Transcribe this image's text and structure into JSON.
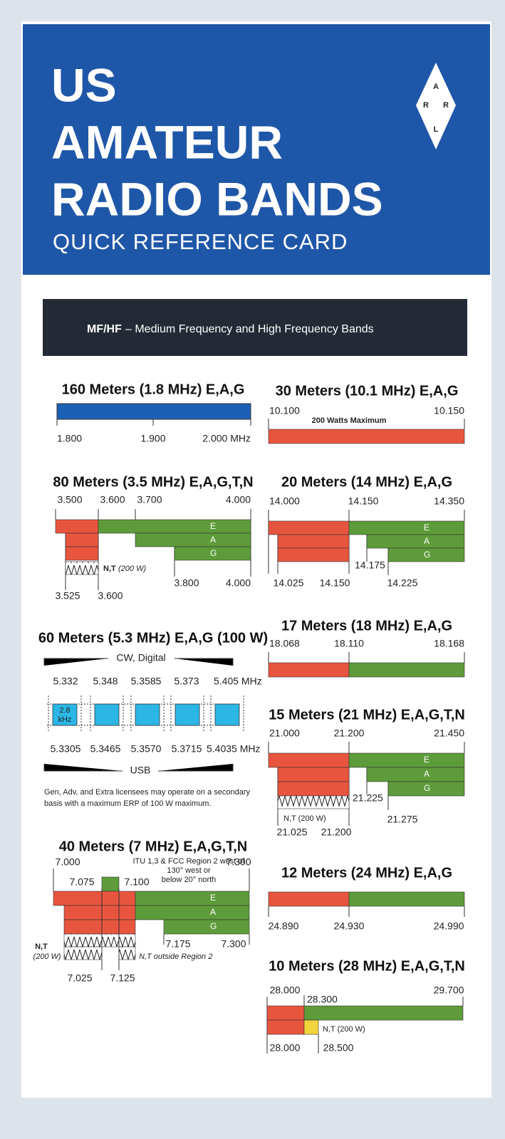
{
  "header": {
    "title_lines": [
      "US",
      "AMATEUR",
      "RADIO BANDS"
    ],
    "subtitle": "QUICK REFERENCE CARD",
    "logo_letters": [
      "A",
      "R",
      "R",
      "L"
    ]
  },
  "section": {
    "code": "MF/HF",
    "title": "– Medium Frequency and High Frequency Bands"
  },
  "bands": [
    {
      "title": "160 Meters (1.8 MHz) E,A,G",
      "labels": [
        "1.800",
        "1.900",
        "2.000 MHz"
      ]
    },
    {
      "title": "80 Meters (3.5 MHz) E,A,G,T,N",
      "labels": [
        "3.500",
        "3.600",
        "3.700",
        "4.000",
        "3.800",
        "4.000",
        "3.525",
        "3.600"
      ],
      "privileges": [
        "E",
        "A",
        "G"
      ],
      "notes": [
        "N,T",
        "(200 W)"
      ]
    },
    {
      "title": "60 Meters (5.3 MHz) E,A,G (100 W)",
      "labels": [
        "5.332",
        "5.348",
        "5.3585",
        "5.373",
        "5.405 MHz",
        "5.3305",
        "5.3465",
        "5.3570",
        "5.3715",
        "5.4035 MHz"
      ],
      "notes": [
        "CW, Digital",
        "2.8",
        "kHz",
        "USB",
        "Gen, Adv, and Extra licensees may operate on a secondary",
        "basis with a maximum ERP of 100 W maximum."
      ]
    },
    {
      "title": "40 Meters (7 MHz) E,A,G,T,N",
      "labels": [
        "7.000",
        "7.300",
        "7.075",
        "7.100",
        "7.175",
        "7.300",
        "7.025",
        "7.125"
      ],
      "privileges": [
        "E",
        "A",
        "G"
      ],
      "notes": [
        "ITU 1,3 & FCC Region 2 west of",
        "130° west or",
        "below 20° north",
        "N,T",
        "(200 W)",
        "N,T outside Region 2"
      ]
    },
    {
      "title": "30 Meters (10.1 MHz) E,A,G",
      "labels": [
        "10.100",
        "10.150"
      ],
      "notes": [
        "200 Watts Maximum"
      ]
    },
    {
      "title": "20 Meters (14 MHz) E,A,G",
      "labels": [
        "14.000",
        "14.150",
        "14.350",
        "14.175",
        "14.025",
        "14.150",
        "14.225"
      ],
      "privileges": [
        "E",
        "A",
        "G"
      ]
    },
    {
      "title": "17 Meters (18 MHz) E,A,G",
      "labels": [
        "18.068",
        "18.110",
        "18.168"
      ]
    },
    {
      "title": "15 Meters (21 MHz) E,A,G,T,N",
      "labels": [
        "21.000",
        "21.200",
        "21.450",
        "21.225",
        "21.275",
        "21.025",
        "21.200"
      ],
      "privileges": [
        "E",
        "A",
        "G"
      ],
      "notes": [
        "N,T (200 W)"
      ]
    },
    {
      "title": "12 Meters (24 MHz) E,A,G",
      "labels": [
        "24.890",
        "24.930",
        "24.990"
      ]
    },
    {
      "title": "10 Meters (28 MHz) E,A,G,T,N",
      "labels": [
        "28.000",
        "28.300",
        "29.700",
        "28.000",
        "28.500"
      ],
      "notes": [
        "N,T (200 W)"
      ]
    }
  ]
}
